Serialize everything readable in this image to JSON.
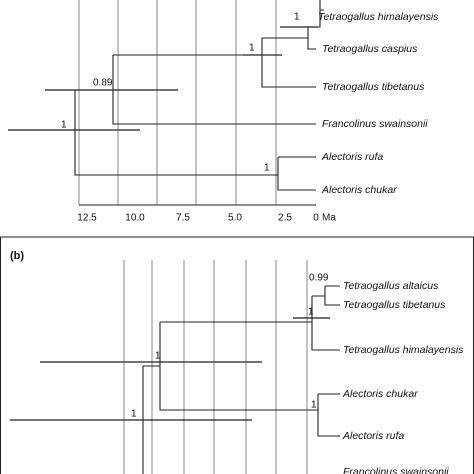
{
  "panel_a": {
    "taxa": [
      "Tetraogallus himalayensis",
      "Tetraogallus caspius",
      "Tetraogallus tibetanus",
      "Francolinus swainsonii",
      "Alectoris rufa",
      "Alectoris chukar"
    ],
    "support": [
      "1",
      "1",
      "0.89",
      "1",
      "1"
    ],
    "axis_ticks": [
      "12.5",
      "10.0",
      "7.5",
      "5.0",
      "2.5",
      "0"
    ],
    "axis_unit": "Ma"
  },
  "panel_b": {
    "label": "(b)",
    "taxa": [
      "Tetraogallus altaicus",
      "Tetraogallus tibetanus",
      "Tetraogallus himalayensis",
      "Alectoris chukar",
      "Alectoris rufa",
      "Francolinus swainsonii"
    ],
    "support": [
      "0.99",
      "1",
      "1",
      "1",
      "1"
    ]
  }
}
